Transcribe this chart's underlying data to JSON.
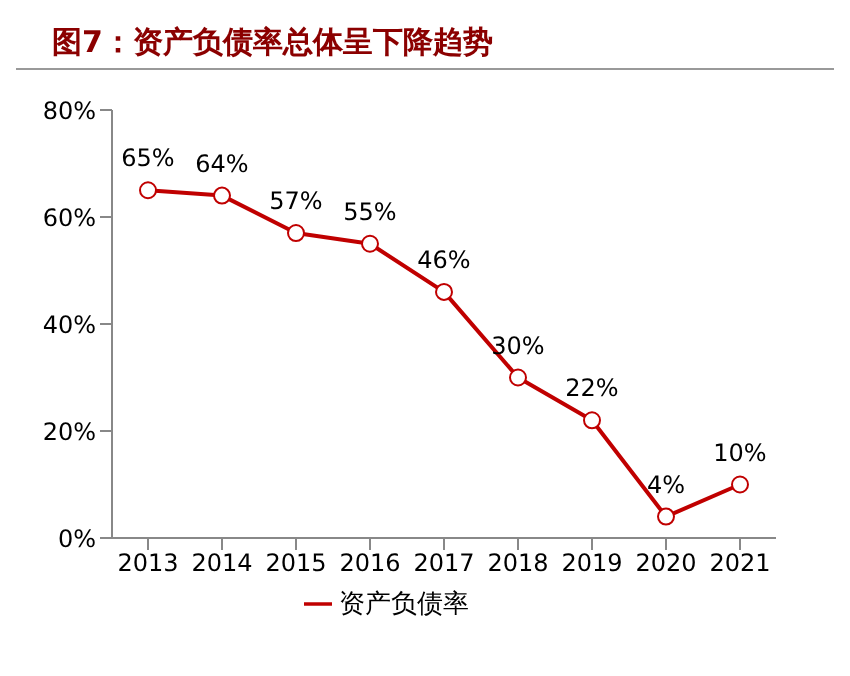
{
  "chart_data": {
    "type": "line",
    "title": "图7：资产负债率总体呈下降趋势",
    "categories": [
      "2013",
      "2014",
      "2015",
      "2016",
      "2017",
      "2018",
      "2019",
      "2020",
      "2021"
    ],
    "series": [
      {
        "name": "资产负债率",
        "color": "#c00000",
        "values": [
          65,
          64,
          57,
          55,
          46,
          30,
          22,
          4,
          10
        ],
        "value_labels": [
          "65%",
          "64%",
          "57%",
          "55%",
          "46%",
          "30%",
          "22%",
          "4%",
          "10%"
        ]
      }
    ],
    "ylim": [
      0,
      80
    ],
    "yticks": [
      {
        "value": 0,
        "label": "0%"
      },
      {
        "value": 20,
        "label": "20%"
      },
      {
        "value": 40,
        "label": "40%"
      },
      {
        "value": 60,
        "label": "60%"
      },
      {
        "value": 80,
        "label": "80%"
      }
    ],
    "grid": false,
    "legend": "bottom",
    "marker": "circle",
    "line_style": "solid"
  }
}
